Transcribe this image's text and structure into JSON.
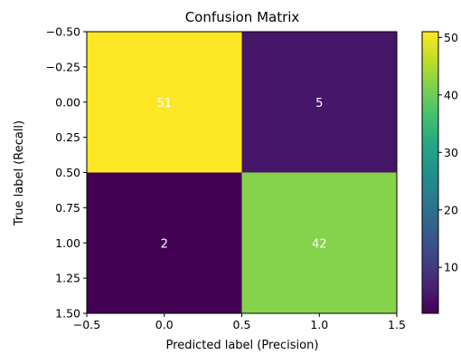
{
  "chart_data": {
    "type": "heatmap",
    "title": "Confusion Matrix",
    "xlabel": "Predicted label (Precision)",
    "ylabel": "True label (Recall)",
    "x_ticks": [
      "−0.5",
      "0.0",
      "0.5",
      "1.0",
      "1.5"
    ],
    "y_ticks": [
      "−0.50",
      "−0.25",
      "0.00",
      "0.25",
      "0.50",
      "0.75",
      "1.00",
      "1.25",
      "1.50"
    ],
    "xlim": [
      -0.5,
      1.5
    ],
    "ylim": [
      1.5,
      -0.5
    ],
    "matrix": [
      [
        51,
        5
      ],
      [
        2,
        42
      ]
    ],
    "colormap": "viridis",
    "colorbar": {
      "range": [
        2,
        51
      ],
      "ticks": [
        "10",
        "20",
        "30",
        "40",
        "50"
      ]
    },
    "grid": false,
    "cell_text_colors": {
      "dark": "#ffffff",
      "light": "#ffffff"
    },
    "colors": {
      "high": "#fde725",
      "low": "#440154"
    }
  }
}
